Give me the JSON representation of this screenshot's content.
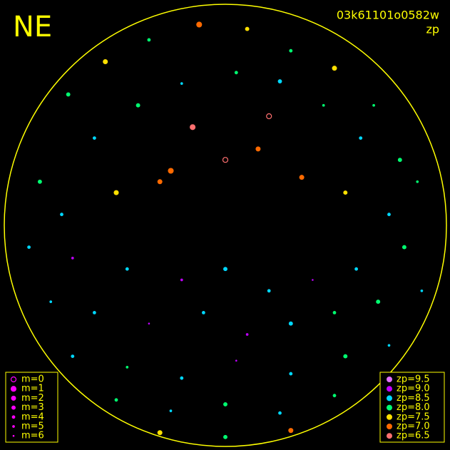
{
  "chart_data": {
    "type": "scatter",
    "title": "NE",
    "subtitle": "03k61101o0582w",
    "color_label": "zp",
    "xlim": [
      -1,
      1
    ],
    "ylim": [
      -1,
      1
    ],
    "size_legend": [
      {
        "value": 0,
        "label": "m=0"
      },
      {
        "value": 1,
        "label": "m=1"
      },
      {
        "value": 2,
        "label": "m=2"
      },
      {
        "value": 3,
        "label": "m=3"
      },
      {
        "value": 4,
        "label": "m=4"
      },
      {
        "value": 5,
        "label": "m=5"
      },
      {
        "value": 6,
        "label": "m=6"
      }
    ],
    "color_legend": [
      {
        "value": 9.5,
        "label": "zp=9.5",
        "color": "#e070ff"
      },
      {
        "value": 9.0,
        "label": "zp=9.0",
        "color": "#c000ff"
      },
      {
        "value": 8.5,
        "label": "zp=8.5",
        "color": "#00d8ff"
      },
      {
        "value": 8.0,
        "label": "zp=8.0",
        "color": "#00ff70"
      },
      {
        "value": 7.5,
        "label": "zp=7.5",
        "color": "#ffe000"
      },
      {
        "value": 7.0,
        "label": "zp=7.0",
        "color": "#ff6a00"
      },
      {
        "value": 6.5,
        "label": "zp=6.5",
        "color": "#ff7070"
      }
    ],
    "series": {
      "x": [
        -0.72,
        -0.55,
        -0.35,
        -0.12,
        0.1,
        0.3,
        0.5,
        0.68,
        -0.6,
        -0.4,
        -0.2,
        0.05,
        0.25,
        0.45,
        0.62,
        0.8,
        -0.85,
        -0.75,
        -0.5,
        -0.3,
        0.35,
        0.55,
        0.75,
        0.88,
        -0.15,
        0.0,
        0.15,
        -0.25,
        0.2,
        -0.9,
        -0.7,
        -0.45,
        -0.2,
        0.0,
        0.2,
        0.4,
        0.6,
        0.82,
        -0.8,
        -0.6,
        -0.35,
        -0.1,
        0.1,
        0.3,
        0.5,
        0.7,
        0.9,
        -0.7,
        -0.45,
        -0.2,
        0.05,
        0.3,
        0.55,
        0.75,
        -0.5,
        -0.25,
        0.0,
        0.25,
        0.5,
        -0.3,
        0.0,
        0.3
      ],
      "y": [
        0.6,
        0.75,
        0.85,
        0.92,
        0.9,
        0.8,
        0.72,
        0.55,
        0.4,
        0.55,
        0.65,
        0.7,
        0.66,
        0.55,
        0.4,
        0.3,
        0.2,
        0.05,
        0.15,
        0.2,
        0.22,
        0.15,
        0.05,
        0.2,
        0.45,
        0.3,
        0.35,
        0.25,
        0.5,
        -0.1,
        -0.15,
        -0.2,
        -0.25,
        -0.2,
        -0.3,
        -0.25,
        -0.2,
        -0.1,
        -0.35,
        -0.4,
        -0.45,
        -0.4,
        -0.5,
        -0.45,
        -0.4,
        -0.35,
        -0.3,
        -0.6,
        -0.65,
        -0.7,
        -0.62,
        -0.68,
        -0.6,
        -0.55,
        -0.8,
        -0.85,
        -0.82,
        -0.86,
        -0.78,
        -0.95,
        -0.97,
        -0.94
      ],
      "zp": [
        8.0,
        7.5,
        8.0,
        7.0,
        7.5,
        8.0,
        7.5,
        8.0,
        8.5,
        8.0,
        8.5,
        8.0,
        8.5,
        8.0,
        8.5,
        8.0,
        8.0,
        8.5,
        7.5,
        7.0,
        7.0,
        7.5,
        8.5,
        8.0,
        6.5,
        6.5,
        7.0,
        7.0,
        6.5,
        8.5,
        9.0,
        8.5,
        9.0,
        8.5,
        8.5,
        9.0,
        8.5,
        8.0,
        8.5,
        8.5,
        9.0,
        8.5,
        9.0,
        8.5,
        8.0,
        8.0,
        8.5,
        8.5,
        8.0,
        8.5,
        9.0,
        8.5,
        8.0,
        8.5,
        8.0,
        8.5,
        8.0,
        8.5,
        8.0,
        7.5,
        8.0,
        7.0
      ],
      "m": [
        3,
        2,
        4,
        1,
        3,
        4,
        2,
        5,
        4,
        3,
        5,
        4,
        3,
        5,
        4,
        3,
        3,
        4,
        2,
        2,
        2,
        3,
        4,
        5,
        1,
        0,
        2,
        1,
        0,
        4,
        5,
        4,
        5,
        3,
        4,
        6,
        4,
        3,
        5,
        4,
        6,
        4,
        5,
        3,
        4,
        3,
        5,
        4,
        5,
        4,
        6,
        4,
        3,
        5,
        4,
        5,
        3,
        4,
        4,
        2,
        3,
        2
      ]
    }
  }
}
